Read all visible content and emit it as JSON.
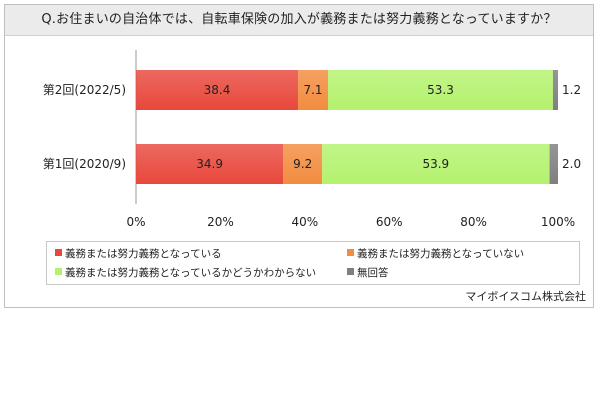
{
  "title": "Q.お住まいの自治体では、自転車保険の加入が義務または努力義務となっていますか？",
  "source": "マイボイスコム株式会社",
  "colors": {
    "mandatory": "#e8483c",
    "not_mandatory": "#f28c3f",
    "unknown": "#b4f26e",
    "no_answer": "#7f7f7f"
  },
  "chart_data": {
    "type": "bar",
    "orientation": "horizontal",
    "stacked": true,
    "percent": true,
    "categories": [
      "第2回(2022/5)",
      "第1回(2020/9)"
    ],
    "series": [
      {
        "name": "義務または努力義務となっている",
        "values": [
          38.4,
          34.9
        ]
      },
      {
        "name": "義務または努力義務となっていない",
        "values": [
          7.1,
          9.2
        ]
      },
      {
        "name": "義務または努力義務となっているかどうかわからない",
        "values": [
          53.3,
          53.9
        ]
      },
      {
        "name": "無回答",
        "values": [
          1.2,
          2.0
        ]
      }
    ],
    "value_labels": [
      [
        "38.4",
        "7.1",
        "53.3",
        "1.2"
      ],
      [
        "34.9",
        "9.2",
        "53.9",
        "2.0"
      ]
    ],
    "xlim": [
      0,
      100
    ],
    "xticks": [
      "0%",
      "20%",
      "40%",
      "60%",
      "80%",
      "100%"
    ],
    "legend_position": "bottom"
  }
}
